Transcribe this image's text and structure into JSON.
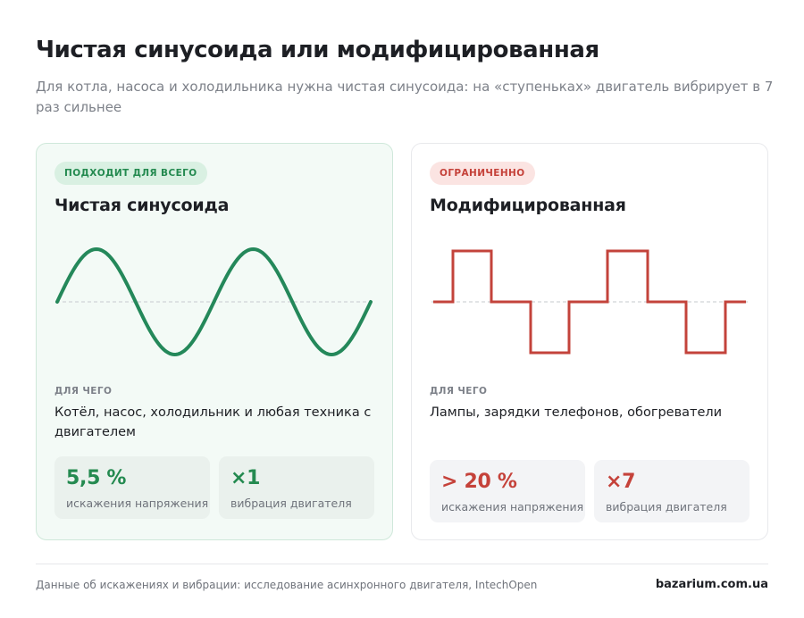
{
  "header": {
    "title": "Чистая синусоида или модифицированная",
    "subtitle": "Для котла, насоса и холодильника нужна чистая синусоида: на «ступеньках» двигатель вибрирует в 7 раз сильнее"
  },
  "cards": [
    {
      "badge": "ПОДХОДИТ ДЛЯ ВСЕГО",
      "title": "Чистая синусоида",
      "wave_type": "sine",
      "wave_color": "#24885a",
      "for_label": "ДЛЯ ЧЕГО",
      "for_text": "Котёл, насос, холодильник и любая техника с двигателем",
      "stats": [
        {
          "value": "5,5 %",
          "label": "искажения напряжения"
        },
        {
          "value": "×1",
          "label": "вибрация двигателя"
        }
      ]
    },
    {
      "badge": "ОГРАНИЧЕННО",
      "title": "Модифицированная",
      "wave_type": "modified-square",
      "wave_color": "#c3433b",
      "for_label": "ДЛЯ ЧЕГО",
      "for_text": "Лампы, зарядки телефонов, обогреватели",
      "stats": [
        {
          "value": "> 20 %",
          "label": "искажения напряжения"
        },
        {
          "value": "×7",
          "label": "вибрация двигателя"
        }
      ]
    }
  ],
  "footer": {
    "source": "Данные об искажениях и вибрации: исследование асинхронного двигателя, IntechOpen",
    "brand": "bazarium.com.ua"
  },
  "colors": {
    "green_accent": "#248a50",
    "red_accent": "#c5423a",
    "green_card_bg": "#f3faf6",
    "baseline": "#d0d3d8"
  }
}
